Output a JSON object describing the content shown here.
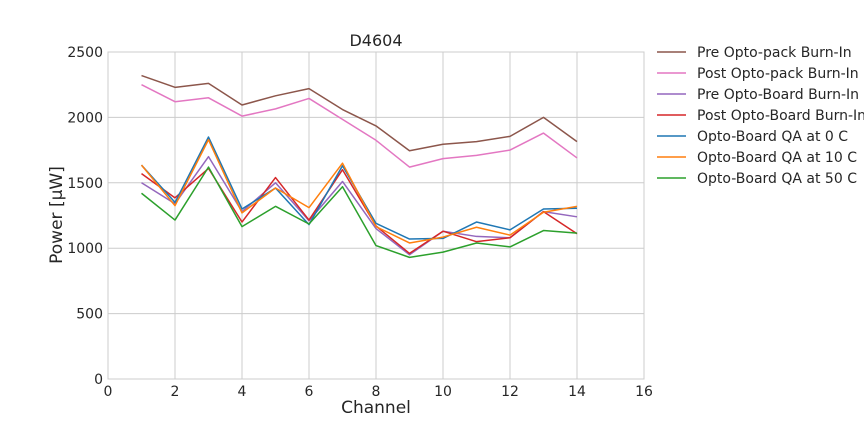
{
  "chart_data": {
    "type": "line",
    "title": "D4604",
    "xlabel": "Channel",
    "ylabel": "Power [μW]",
    "xlim": [
      0,
      16
    ],
    "ylim": [
      0,
      2500
    ],
    "xticks": [
      0,
      2,
      4,
      6,
      8,
      10,
      12,
      14,
      16
    ],
    "yticks": [
      0,
      500,
      1000,
      1500,
      2000,
      2500
    ],
    "grid": true,
    "legend_position": "outside-right",
    "x": [
      1,
      2,
      3,
      4,
      5,
      6,
      7,
      8,
      9,
      10,
      11,
      12,
      13,
      14
    ],
    "series": [
      {
        "name": "Pre Opto-pack Burn-In",
        "color": "#8c564b",
        "values": [
          2320,
          2230,
          2260,
          2095,
          2165,
          2220,
          2060,
          1935,
          1745,
          1795,
          1815,
          1855,
          2000,
          1815
        ]
      },
      {
        "name": "Post Opto-pack Burn-In",
        "color": "#e377c2",
        "values": [
          2250,
          2120,
          2150,
          2010,
          2065,
          2145,
          1985,
          1825,
          1620,
          1685,
          1710,
          1750,
          1880,
          1690
        ]
      },
      {
        "name": "Pre Opto-Board Burn-In",
        "color": "#9467bd",
        "values": [
          1500,
          1340,
          1700,
          1280,
          1500,
          1210,
          1510,
          1150,
          950,
          1130,
          1090,
          1080,
          1280,
          1240
        ]
      },
      {
        "name": "Post Opto-Board Burn-In",
        "color": "#d62728",
        "values": [
          1570,
          1385,
          1610,
          1200,
          1540,
          1215,
          1600,
          1170,
          960,
          1130,
          1050,
          1080,
          1280,
          1110
        ]
      },
      {
        "name": "Opto-Board QA at 0 C",
        "color": "#1f77b4",
        "values": [
          1635,
          1350,
          1850,
          1300,
          1460,
          1180,
          1630,
          1190,
          1070,
          1075,
          1200,
          1140,
          1300,
          1305
        ]
      },
      {
        "name": "Opto-Board QA at 10 C",
        "color": "#ff7f0e",
        "values": [
          1635,
          1325,
          1830,
          1270,
          1460,
          1310,
          1650,
          1165,
          1040,
          1085,
          1160,
          1100,
          1275,
          1320
        ]
      },
      {
        "name": "Opto-Board QA at 50 C",
        "color": "#2ca02c",
        "values": [
          1420,
          1215,
          1620,
          1165,
          1320,
          1185,
          1470,
          1020,
          930,
          970,
          1040,
          1010,
          1135,
          1115
        ]
      }
    ]
  }
}
